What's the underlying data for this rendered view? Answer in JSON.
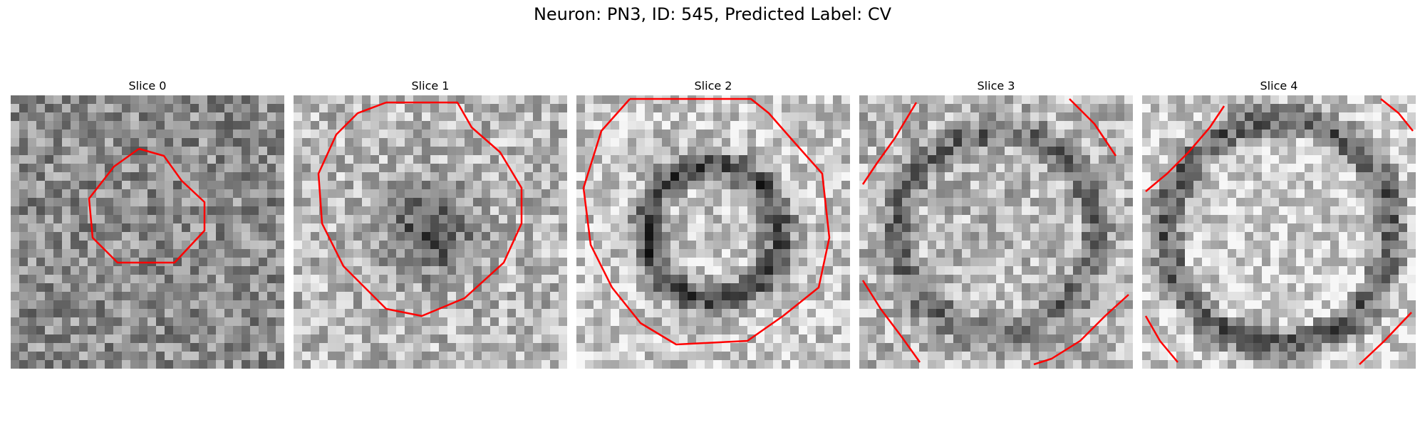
{
  "figure": {
    "title": "Neuron: PN3, ID: 545, Predicted Label: CV"
  },
  "panels": [
    {
      "label": "Slice 0",
      "pattern": "dark-center-noise",
      "seed": 11
    },
    {
      "label": "Slice 1",
      "pattern": "dark-blob",
      "seed": 23
    },
    {
      "label": "Slice 2",
      "pattern": "bright-center-dark-ring",
      "seed": 37
    },
    {
      "label": "Slice 3",
      "pattern": "bright-large",
      "seed": 51
    },
    {
      "label": "Slice 4",
      "pattern": "bright-largest",
      "seed": 67
    }
  ],
  "contour_color": "#ff0000"
}
